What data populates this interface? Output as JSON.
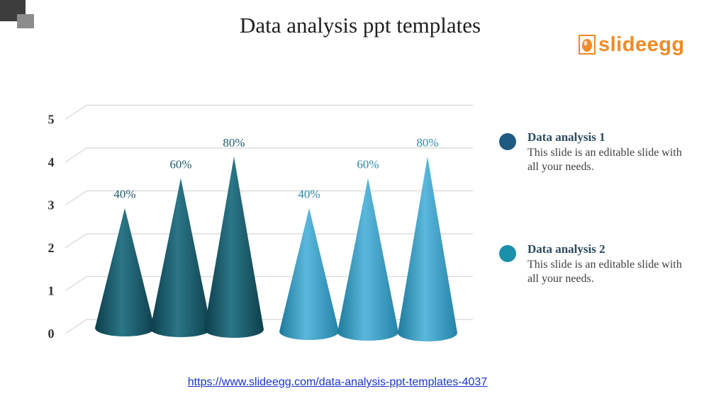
{
  "title": "Data analysis ppt templates",
  "logo": {
    "text": "slideegg",
    "color": "#ef8a26"
  },
  "chart_data": {
    "type": "bar",
    "style": "3d-cone",
    "ylim": [
      0,
      5
    ],
    "yticks": [
      "0",
      "1",
      "2",
      "3",
      "4",
      "5"
    ],
    "grid": true,
    "series": [
      {
        "name": "Data analysis 1",
        "color": "#1d5a6c",
        "values": [
          2.6,
          3.3,
          3.8
        ],
        "labels": [
          "40%",
          "60%",
          "80%"
        ]
      },
      {
        "name": "Data analysis 2",
        "color": "#2a95b8",
        "values": [
          2.6,
          3.3,
          3.8
        ],
        "labels": [
          "40%",
          "60%",
          "80%"
        ]
      }
    ]
  },
  "legend": [
    {
      "heading": "Data analysis 1",
      "text": "This slide is an editable slide with all your needs.",
      "color": "#1f5a82"
    },
    {
      "heading": "Data analysis 2",
      "text": "This slide is an editable slide with all your needs.",
      "color": "#1c8fab"
    }
  ],
  "footer_link": "https://www.slideegg.com/data-analysis-ppt-templates-4037"
}
